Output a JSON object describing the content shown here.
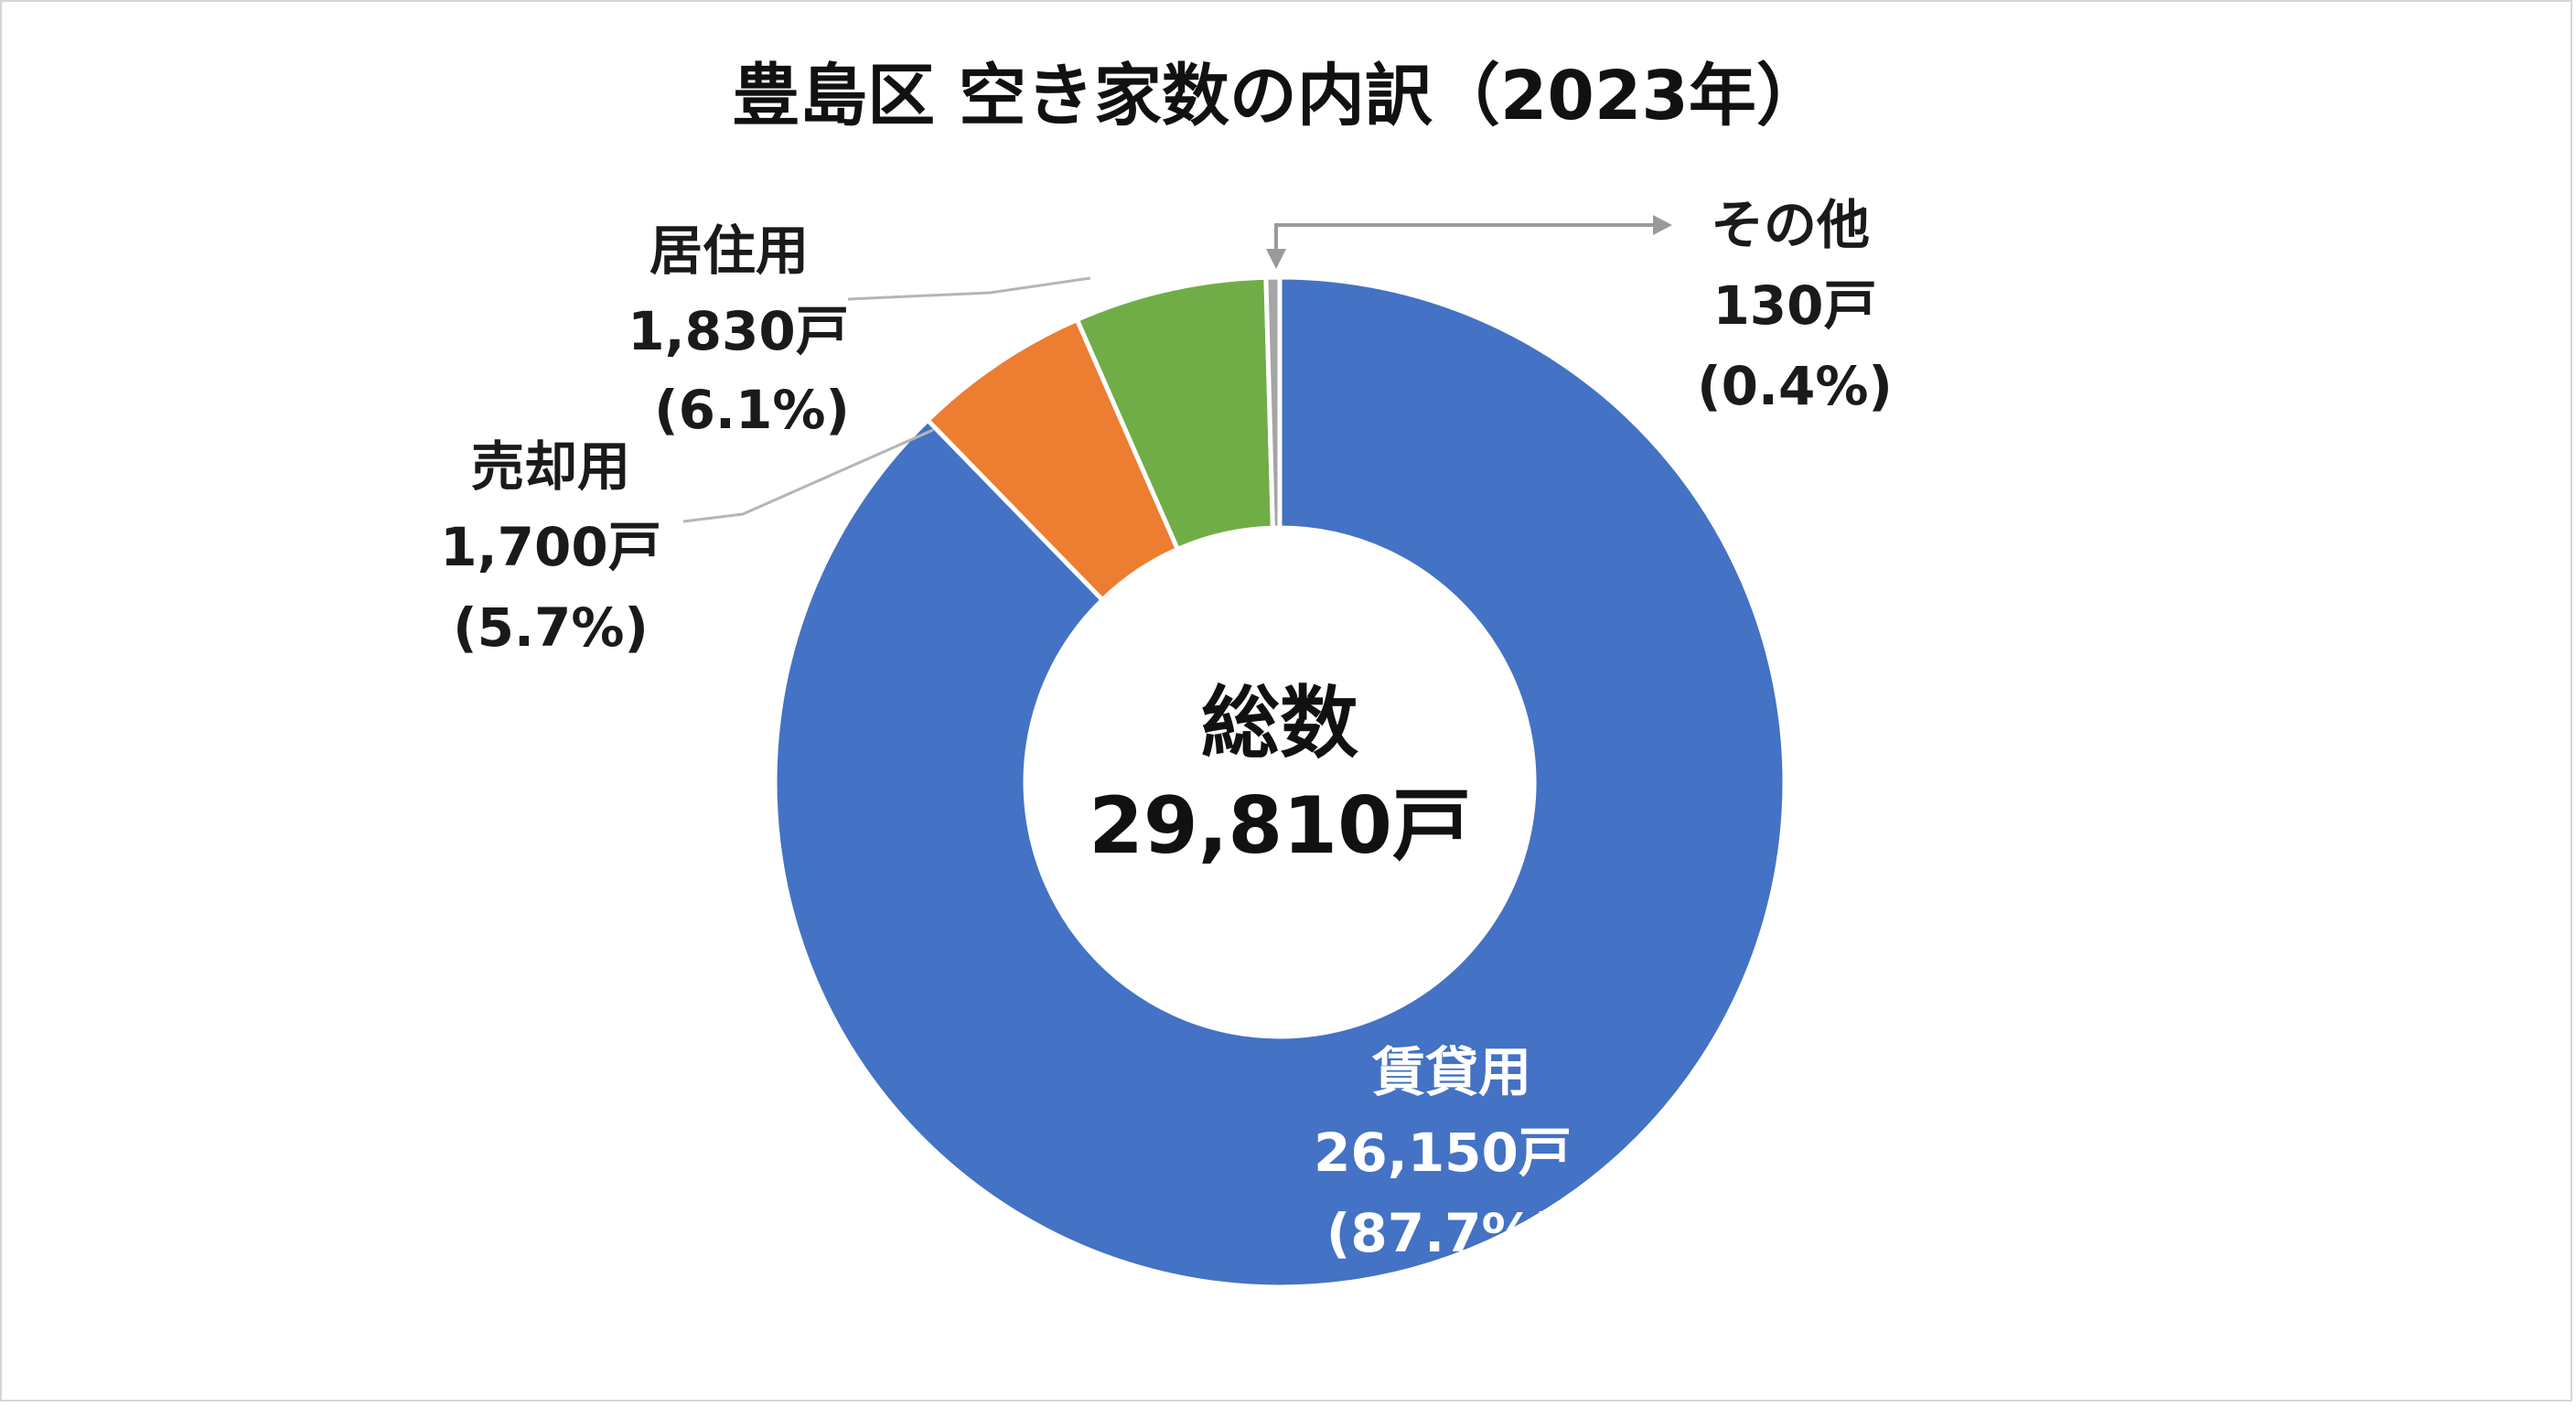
{
  "chart_data": {
    "type": "pie",
    "variant": "donut",
    "title": "豊島区 空き家数の内訳（2023年）",
    "unit": "戸",
    "total": {
      "label": "総数",
      "value_text": "29,810戸",
      "value": 29810
    },
    "slices": [
      {
        "key": "rental",
        "name": "賃貸用",
        "value": 26150,
        "value_text": "26,150戸",
        "percent": 87.7,
        "percent_text": "(87.7%)",
        "color": "#4472C4"
      },
      {
        "key": "sale",
        "name": "売却用",
        "value": 1700,
        "value_text": "1,700戸",
        "percent": 5.7,
        "percent_text": "(5.7%)",
        "color": "#ED7D31"
      },
      {
        "key": "residential",
        "name": "居住用",
        "value": 1830,
        "value_text": "1,830戸",
        "percent": 6.1,
        "percent_text": "(6.1%)",
        "color": "#70AD47"
      },
      {
        "key": "other",
        "name": "その他",
        "value": 130,
        "value_text": "130戸",
        "percent": 0.4,
        "percent_text": "(0.4%)",
        "color": "#A5A5A5"
      }
    ],
    "legend": "none",
    "start_angle": "12 o'clock",
    "direction": "clockwise"
  }
}
